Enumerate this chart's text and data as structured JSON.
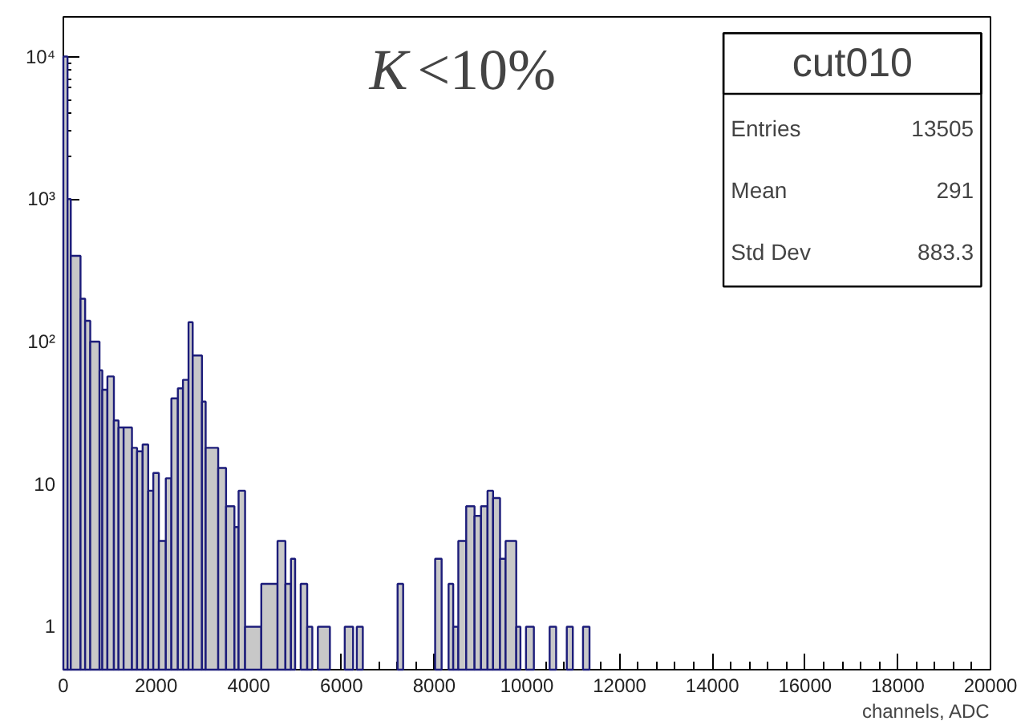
{
  "chart_data": {
    "type": "histogram",
    "bins": [
      0,
      90,
      160,
      370,
      470,
      580,
      780,
      840,
      950,
      1090,
      1190,
      1300,
      1480,
      1590,
      1710,
      1830,
      1940,
      2060,
      2210,
      2330,
      2470,
      2580,
      2700,
      2790,
      2990,
      3070,
      3340,
      3510,
      3690,
      3780,
      3920,
      4270,
      4620,
      4790,
      4910,
      5000,
      5120,
      5260,
      5370,
      5490,
      5750,
      6070,
      6250,
      6330,
      6460,
      7210,
      7330,
      8020,
      8160,
      8310,
      8410,
      8520,
      8690,
      8870,
      9010,
      9150,
      9270,
      9420,
      9540,
      9770,
      9860,
      9980,
      10150,
      10490,
      10630,
      10860,
      10990,
      11210,
      11350
    ],
    "values": [
      10000,
      1000,
      400,
      200,
      140,
      100,
      63,
      46,
      57,
      28,
      25,
      25,
      18,
      17,
      19,
      9,
      12,
      4,
      11,
      40,
      47,
      54,
      137,
      80,
      38,
      18,
      13,
      7,
      5,
      9,
      1,
      2,
      4,
      2,
      3,
      null,
      2,
      1,
      null,
      1,
      null,
      1,
      null,
      1,
      null,
      2,
      null,
      3,
      null,
      2,
      1,
      4,
      7,
      6,
      7,
      9,
      8,
      3,
      4,
      1,
      null,
      1,
      null,
      1,
      null,
      1,
      null,
      1
    ],
    "color": "#c8c8c8",
    "xlabel": "channels, ADC",
    "xlim": [
      0,
      20000
    ],
    "xticks": [
      0,
      2000,
      4000,
      6000,
      8000,
      10000,
      12000,
      14000,
      16000,
      18000,
      20000
    ],
    "ylim": [
      0.5,
      19000
    ],
    "yticks": [
      1,
      10,
      {
        "value": 100,
        "label": "10²"
      },
      {
        "value": 1000,
        "label": "10³"
      },
      {
        "value": 10000,
        "label": "10⁴"
      }
    ],
    "log": "y",
    "grid": false,
    "annotations": [
      "K<10%",
      "cut010",
      "Entries 13505",
      "Mean 291",
      "Std Dev 883.3"
    ]
  }
}
